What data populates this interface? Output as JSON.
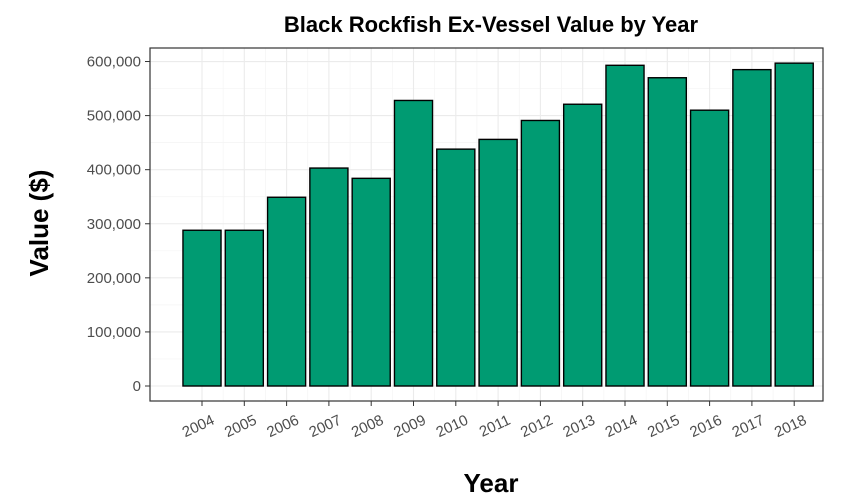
{
  "chart_data": {
    "type": "bar",
    "title": "Black Rockfish Ex-Vessel Value by Year",
    "xlabel": "Year",
    "ylabel": "Value ($)",
    "categories": [
      "2004",
      "2005",
      "2006",
      "2007",
      "2008",
      "2009",
      "2010",
      "2011",
      "2012",
      "2013",
      "2014",
      "2015",
      "2016",
      "2017",
      "2018"
    ],
    "values": [
      288000,
      288000,
      349000,
      403000,
      384000,
      528000,
      438000,
      456000,
      491000,
      521000,
      593000,
      570000,
      510000,
      585000,
      597000
    ],
    "ylim": [
      0,
      625000
    ],
    "yticks": [
      0,
      100000,
      200000,
      300000,
      400000,
      500000,
      600000
    ],
    "ytick_labels": [
      "0",
      "100,000",
      "200,000",
      "300,000",
      "400,000",
      "500,000",
      "600,000"
    ],
    "grid": true,
    "bar_color": "#009b72",
    "bar_outline": "#000000",
    "panel_border": "#333333",
    "x_tick_rotation_deg": -25
  }
}
